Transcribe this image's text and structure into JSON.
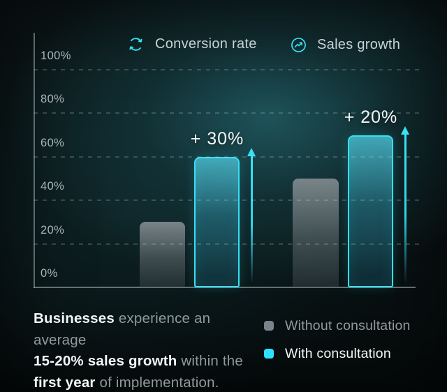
{
  "top_legend": {
    "items": [
      {
        "label": "Conversion rate",
        "icon": "cycle-icon"
      },
      {
        "label": "Sales growth",
        "icon": "trend-up-icon"
      }
    ]
  },
  "chart_data": {
    "type": "bar",
    "title": "",
    "categories": [
      "Conversion rate",
      "Sales growth"
    ],
    "series": [
      {
        "name": "Without consultation",
        "values": [
          30,
          50
        ]
      },
      {
        "name": "With consultation",
        "values": [
          60,
          70
        ]
      }
    ],
    "delta_labels": [
      "+ 30%",
      "+ 20%"
    ],
    "y_ticks": [
      {
        "label": "100%",
        "value": 100
      },
      {
        "label": "80%",
        "value": 80
      },
      {
        "label": "60%",
        "value": 60
      },
      {
        "label": "40%",
        "value": 40
      },
      {
        "label": "20%",
        "value": 20
      },
      {
        "label": "0%",
        "value": 0
      }
    ],
    "ylim": [
      0,
      100
    ],
    "grid": "dashed-horizontal",
    "legend_position": "bottom-right"
  },
  "caption": {
    "lines": [
      [
        {
          "text": "Businesses",
          "emphasis": true
        },
        {
          "text": " experience an average",
          "emphasis": false
        }
      ],
      [
        {
          "text": "15-20% sales growth",
          "emphasis": true
        },
        {
          "text": " within the",
          "emphasis": false
        }
      ],
      [
        {
          "text": "first year",
          "emphasis": true
        },
        {
          "text": " of implementation.",
          "emphasis": false
        }
      ]
    ]
  },
  "bottom_legend": {
    "items": [
      {
        "label": "Without consultation",
        "color": "#78838a"
      },
      {
        "label": "With consultation",
        "color": "#2de1fc"
      }
    ]
  },
  "colors": {
    "accent_cyan": "#35dff4",
    "bar_gray": "#78838a",
    "background_teal": "#143137",
    "text_bright": "#f1f6f6",
    "text_muted": "#8f9a9d"
  }
}
